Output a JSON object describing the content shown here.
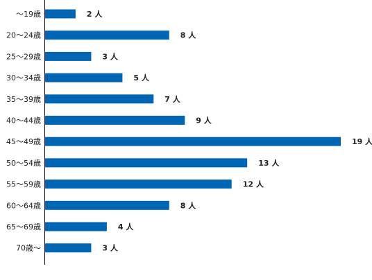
{
  "chart_data": {
    "type": "bar",
    "orientation": "horizontal",
    "categories": [
      "～19歳",
      "20～24歳",
      "25～29歳",
      "30～34歳",
      "35～39歳",
      "40～44歳",
      "45～49歳",
      "50～54歳",
      "55～59歳",
      "60～64歳",
      "65～69歳",
      "70歳～"
    ],
    "values": [
      2,
      8,
      3,
      5,
      7,
      9,
      19,
      13,
      12,
      8,
      4,
      3
    ],
    "value_labels": [
      "2 人",
      "8 人",
      "3 人",
      "5 人",
      "7 人",
      "9 人",
      "19 人",
      "13 人",
      "12 人",
      "8 人",
      "4 人",
      "3 人"
    ],
    "xlim": [
      0,
      19
    ],
    "title": "",
    "xlabel": "",
    "ylabel": "",
    "grid": false,
    "legend": "none",
    "bar_color": "#0066b3",
    "axis_color": "#000000"
  }
}
